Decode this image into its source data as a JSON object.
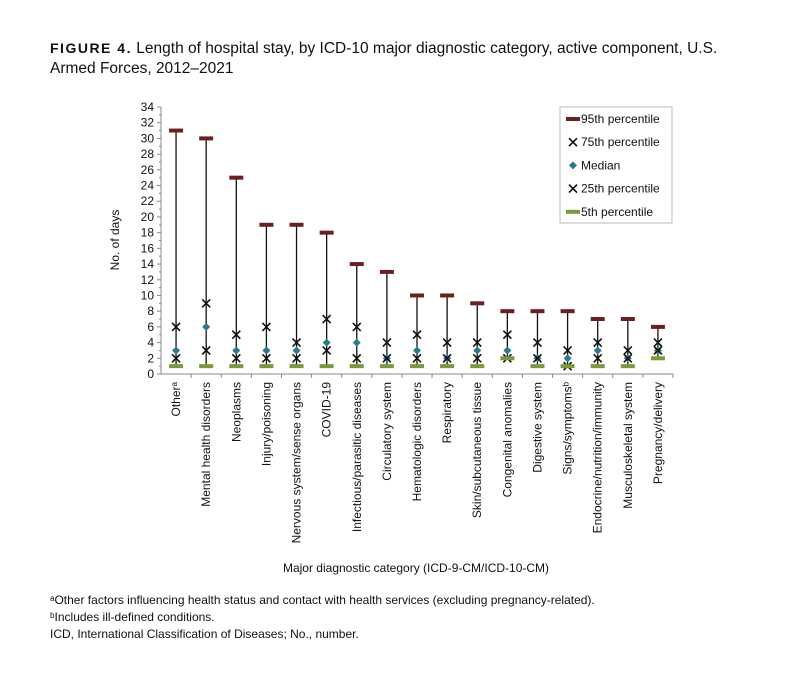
{
  "figure_label": "FIGURE 4.",
  "title": "Length of hospital stay, by ICD-10 major diagnostic category, active component, U.S. Armed Forces, 2012–2021",
  "chart_data": {
    "type": "scatter",
    "title": "Length of hospital stay, by ICD-10 major diagnostic category, active component, U.S. Armed Forces, 2012–2021",
    "xlabel": "Major diagnostic category (ICD-9-CM/ICD-10-CM)",
    "ylabel": "No. of days",
    "ylim": [
      0,
      34
    ],
    "yticks": [
      0,
      2,
      4,
      6,
      8,
      10,
      12,
      14,
      16,
      18,
      20,
      22,
      24,
      26,
      28,
      30,
      32,
      34
    ],
    "legend_placement": "top-right",
    "categories": [
      "Otherᵃ",
      "Mental health disorders",
      "Neoplasms",
      "Injury/poisoning",
      "Nervous system/sense organs",
      "COVID-19",
      "Infectious/parasitic diseases",
      "Circulatory system",
      "Hematologic disorders",
      "Respiratory",
      "Skin/subcutaneous tissue",
      "Congenital anomalies",
      "Digestive system",
      "Signs/symptomsᵇ",
      "Endocrine/nutrition/immunity",
      "Musculoskeletal system",
      "Pregnancy/delivery"
    ],
    "series": [
      {
        "name": "95th percentile",
        "color": "#6b1f1f",
        "marker": "dash",
        "values": [
          31,
          30,
          25,
          19,
          19,
          18,
          14,
          13,
          10,
          10,
          9,
          8,
          8,
          8,
          7,
          7,
          6
        ]
      },
      {
        "name": "75th percentile",
        "color": "#111111",
        "marker": "x",
        "values": [
          6,
          9,
          5,
          6,
          4,
          7,
          6,
          4,
          5,
          4,
          4,
          5,
          4,
          3,
          4,
          3,
          4
        ]
      },
      {
        "name": "Median",
        "color": "#2b7a8c",
        "marker": "diamond",
        "values": [
          3,
          6,
          3,
          3,
          3,
          4,
          4,
          2,
          3,
          2,
          3,
          3,
          2,
          2,
          3,
          2,
          3
        ]
      },
      {
        "name": "25th percentile",
        "color": "#111111",
        "marker": "x",
        "values": [
          2,
          3,
          2,
          2,
          2,
          3,
          2,
          2,
          2,
          2,
          2,
          2,
          2,
          1,
          2,
          2,
          3
        ]
      },
      {
        "name": "5th percentile",
        "color": "#7a9a3a",
        "marker": "dash",
        "values": [
          1,
          1,
          1,
          1,
          1,
          1,
          1,
          1,
          1,
          1,
          1,
          2,
          1,
          1,
          1,
          1,
          2
        ]
      }
    ]
  },
  "footnotes": [
    "ᵃOther factors influencing health status and contact with health services (excluding pregnancy-related).",
    "ᵇIncludes ill-defined conditions.",
    "ICD, International Classification of Diseases; No., number."
  ]
}
